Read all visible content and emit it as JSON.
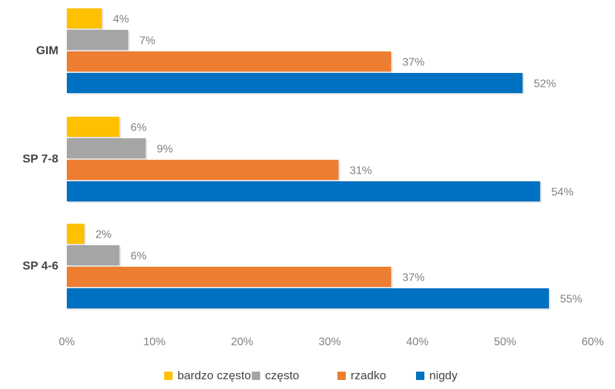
{
  "chart_data": {
    "type": "bar",
    "orientation": "horizontal",
    "categories": [
      "GIM",
      "SP 7-8",
      "SP 4-6"
    ],
    "series": [
      {
        "name": "bardzo często",
        "color": "#FFC000",
        "values": [
          4,
          6,
          2
        ],
        "labels": [
          "4%",
          "6%",
          "2%"
        ]
      },
      {
        "name": "często",
        "color": "#A5A5A5",
        "values": [
          7,
          9,
          6
        ],
        "labels": [
          "7%",
          "9%",
          "6%"
        ]
      },
      {
        "name": "rzadko",
        "color": "#ED7D31",
        "values": [
          37,
          31,
          37
        ],
        "labels": [
          "37%",
          "31%",
          "37%"
        ]
      },
      {
        "name": "nigdy",
        "color": "#0070C0",
        "values": [
          52,
          54,
          55
        ],
        "labels": [
          "52%",
          "54%",
          "55%"
        ]
      }
    ],
    "xlim": [
      0,
      60
    ],
    "xticks": [
      0,
      10,
      20,
      30,
      40,
      50,
      60
    ],
    "xtick_labels": [
      "0%",
      "10%",
      "20%",
      "30%",
      "40%",
      "50%",
      "60%"
    ],
    "title": "",
    "xlabel": "",
    "ylabel": "",
    "grid": false,
    "legend_position": "bottom"
  }
}
